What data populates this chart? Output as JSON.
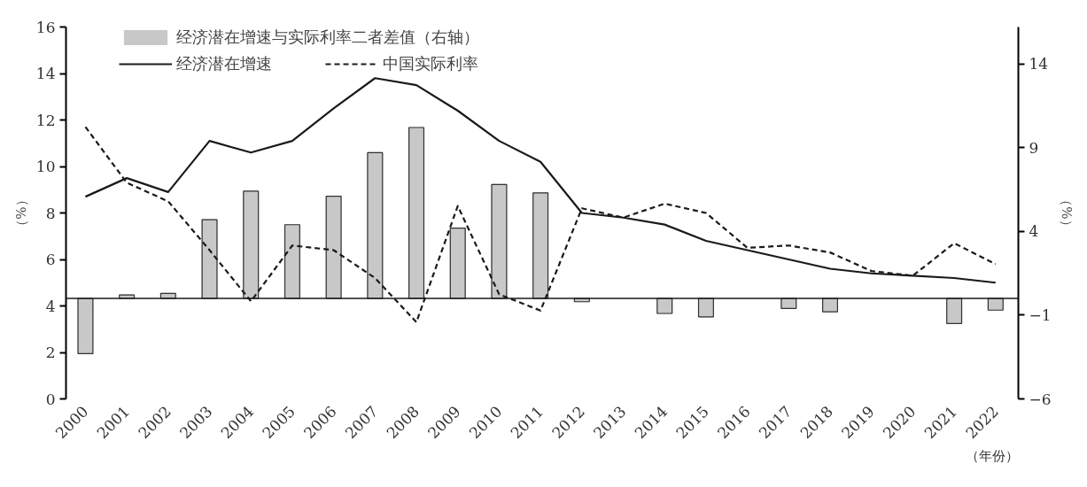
{
  "chart_data": {
    "type": "bar",
    "categories": [
      "2000",
      "2001",
      "2002",
      "2003",
      "2004",
      "2005",
      "2006",
      "2007",
      "2008",
      "2009",
      "2010",
      "2011",
      "2012",
      "2013",
      "2014",
      "2015",
      "2016",
      "2017",
      "2018",
      "2019",
      "2020",
      "2021",
      "2022"
    ],
    "series": [
      {
        "name": "经济潜在增速与实际利率二者差值（右轴）",
        "axis": "y2",
        "color": "#c8c8c8",
        "values": [
          -3.3,
          0.2,
          0.3,
          4.7,
          6.4,
          4.4,
          6.1,
          8.7,
          10.2,
          4.2,
          6.8,
          6.3,
          -0.2,
          null,
          -0.9,
          -1.1,
          null,
          -0.6,
          -0.8,
          null,
          null,
          -1.5,
          -0.7
        ]
      },
      {
        "name": "经济潜在增速",
        "type": "line",
        "line_style": "solid",
        "color": "#1a1a1a",
        "values": [
          8.7,
          9.5,
          8.9,
          11.1,
          10.6,
          11.1,
          12.5,
          13.8,
          13.5,
          12.4,
          11.1,
          10.2,
          8.0,
          7.8,
          7.5,
          6.8,
          6.4,
          6.0,
          5.6,
          5.4,
          5.3,
          5.2,
          5.0
        ]
      },
      {
        "name": "中国实际利率",
        "type": "line",
        "line_style": "dashed",
        "color": "#1a1a1a",
        "values": [
          11.7,
          9.3,
          8.5,
          6.4,
          4.2,
          6.6,
          6.4,
          5.2,
          3.3,
          8.3,
          4.5,
          3.8,
          8.2,
          7.8,
          8.4,
          8.0,
          6.5,
          6.6,
          6.3,
          5.5,
          5.3,
          6.7,
          5.8
        ]
      }
    ],
    "ylabel": "（%）",
    "y2label": "（%）",
    "xlabel": "（年份）",
    "ylim": [
      0,
      16
    ],
    "yticks": [
      0,
      2,
      4,
      6,
      8,
      10,
      12,
      14,
      16
    ],
    "y2lim": [
      -6,
      16.2
    ],
    "y2ticks": [
      -6,
      -1,
      4,
      9,
      14
    ],
    "ref_lines": [
      {
        "axis": "y2",
        "value": 0,
        "color": "#1a1a1a"
      }
    ],
    "legend": "top left",
    "grid": false,
    "marker": "none"
  }
}
